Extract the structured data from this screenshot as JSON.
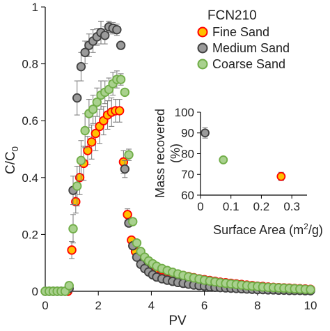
{
  "chart_data": [
    {
      "type": "scatter",
      "panel": "main",
      "xlabel": "PV",
      "ylabel": "C/C0",
      "ylabel_main": "C/C",
      "ylabel_sub": "0",
      "xlim": [
        0,
        10
      ],
      "ylim": [
        0,
        1
      ],
      "xticks": [
        "0",
        "2",
        "4",
        "6",
        "8",
        "10"
      ],
      "yticks": [
        "0",
        "0.2",
        "0.4",
        "0.6",
        "0.8",
        "1"
      ],
      "grid": false,
      "legend": {
        "title": "FCN210",
        "position": "top-right",
        "entries": [
          "Fine Sand",
          "Medium Sand",
          "Coarse Sand"
        ]
      },
      "series": [
        {
          "name": "Fine Sand",
          "color": "#ffc000",
          "edge": "#ff0000",
          "points": [
            [
              0.85,
              0.0,
              0
            ],
            [
              1.0,
              0.145,
              0.03
            ],
            [
              1.15,
              0.315,
              0.04
            ],
            [
              1.3,
              0.4,
              0.06
            ],
            [
              1.45,
              0.45,
              0.06
            ],
            [
              1.6,
              0.495,
              0.05
            ],
            [
              1.75,
              0.525,
              0.06
            ],
            [
              1.9,
              0.555,
              0.06
            ],
            [
              2.05,
              0.58,
              0.06
            ],
            [
              2.2,
              0.6,
              0.05
            ],
            [
              2.35,
              0.62,
              0.05
            ],
            [
              2.5,
              0.63,
              0.05
            ],
            [
              2.65,
              0.635,
              0.04
            ],
            [
              2.8,
              0.635,
              0.04
            ],
            [
              2.95,
              0.455,
              0.04
            ],
            [
              3.1,
              0.27,
              0.02
            ],
            [
              3.25,
              0.18,
              0.01
            ],
            [
              3.4,
              0.14,
              0
            ],
            [
              3.55,
              0.12,
              0
            ],
            [
              3.7,
              0.105,
              0
            ],
            [
              3.85,
              0.095,
              0
            ],
            [
              4.0,
              0.088,
              0
            ],
            [
              4.2,
              0.081,
              0
            ],
            [
              4.4,
              0.075,
              0
            ],
            [
              4.6,
              0.07,
              0
            ],
            [
              4.8,
              0.065,
              0
            ],
            [
              5.0,
              0.06,
              0
            ],
            [
              5.2,
              0.056,
              0
            ],
            [
              5.4,
              0.052,
              0
            ],
            [
              5.6,
              0.048,
              0
            ],
            [
              5.8,
              0.044,
              0
            ],
            [
              6.0,
              0.041,
              0
            ],
            [
              6.2,
              0.038,
              0
            ],
            [
              6.4,
              0.035,
              0
            ],
            [
              6.6,
              0.032,
              0
            ],
            [
              6.8,
              0.03,
              0
            ],
            [
              7.0,
              0.028,
              0
            ],
            [
              7.2,
              0.026,
              0
            ],
            [
              7.4,
              0.024,
              0
            ],
            [
              7.6,
              0.022,
              0
            ],
            [
              7.8,
              0.02,
              0
            ],
            [
              8.0,
              0.018,
              0
            ],
            [
              8.2,
              0.017,
              0
            ],
            [
              8.4,
              0.015,
              0
            ],
            [
              8.6,
              0.014,
              0
            ],
            [
              8.8,
              0.013,
              0
            ],
            [
              9.0,
              0.012,
              0
            ],
            [
              9.2,
              0.011,
              0
            ],
            [
              9.4,
              0.01,
              0
            ],
            [
              9.6,
              0.009,
              0
            ],
            [
              9.8,
              0.008,
              0
            ],
            [
              10.0,
              0.007,
              0
            ]
          ]
        },
        {
          "name": "Medium Sand",
          "color": "#9a9a9a",
          "edge": "#404040",
          "points": [
            [
              0.0,
              0.0,
              0
            ],
            [
              0.15,
              0.0,
              0
            ],
            [
              0.3,
              0.0,
              0
            ],
            [
              0.45,
              0.0,
              0
            ],
            [
              0.6,
              0.0,
              0
            ],
            [
              0.75,
              0.0,
              0
            ],
            [
              0.9,
              0.01,
              0
            ],
            [
              1.05,
              0.355,
              0.05
            ],
            [
              1.2,
              0.68,
              0.06
            ],
            [
              1.35,
              0.79,
              0.05
            ],
            [
              1.5,
              0.84,
              0.04
            ],
            [
              1.65,
              0.865,
              0.04
            ],
            [
              1.8,
              0.88,
              0.04
            ],
            [
              1.95,
              0.895,
              0.03
            ],
            [
              2.1,
              0.91,
              0.04
            ],
            [
              2.25,
              0.9,
              0.03
            ],
            [
              2.4,
              0.93,
              0.02
            ],
            [
              2.55,
              0.925,
              0.02
            ],
            [
              2.7,
              0.92,
              0.02
            ],
            [
              2.85,
              0.865,
              0
            ],
            [
              3.0,
              0.43,
              0.03
            ],
            [
              3.15,
              0.24,
              0.01
            ],
            [
              3.3,
              0.16,
              0
            ],
            [
              3.45,
              0.12,
              0
            ],
            [
              3.6,
              0.095,
              0
            ],
            [
              3.75,
              0.08,
              0
            ],
            [
              3.9,
              0.068,
              0
            ],
            [
              4.05,
              0.058,
              0
            ],
            [
              4.2,
              0.05,
              0
            ],
            [
              4.4,
              0.044,
              0
            ],
            [
              4.6,
              0.039,
              0
            ],
            [
              4.8,
              0.035,
              0
            ],
            [
              5.0,
              0.031,
              0
            ],
            [
              5.2,
              0.028,
              0
            ],
            [
              5.4,
              0.025,
              0
            ],
            [
              5.6,
              0.022,
              0
            ],
            [
              5.8,
              0.02,
              0
            ],
            [
              6.0,
              0.018,
              0
            ],
            [
              6.2,
              0.016,
              0
            ],
            [
              6.4,
              0.014,
              0
            ],
            [
              6.6,
              0.013,
              0
            ],
            [
              6.8,
              0.012,
              0
            ],
            [
              7.0,
              0.011,
              0
            ],
            [
              7.2,
              0.01,
              0
            ],
            [
              7.4,
              0.009,
              0
            ],
            [
              7.6,
              0.008,
              0
            ],
            [
              7.8,
              0.007,
              0
            ],
            [
              8.0,
              0.006,
              0
            ],
            [
              8.2,
              0.006,
              0
            ],
            [
              8.4,
              0.005,
              0
            ],
            [
              8.6,
              0.005,
              0
            ],
            [
              8.8,
              0.004,
              0
            ],
            [
              9.0,
              0.004,
              0
            ],
            [
              9.2,
              0.003,
              0
            ],
            [
              9.4,
              0.003,
              0
            ],
            [
              9.6,
              0.003,
              0
            ],
            [
              9.8,
              0.002,
              0
            ],
            [
              10.0,
              0.002,
              0
            ]
          ]
        },
        {
          "name": "Coarse Sand",
          "color": "#a9d18e",
          "edge": "#70ad47",
          "points": [
            [
              0.0,
              0.0,
              0
            ],
            [
              0.15,
              0.0,
              0
            ],
            [
              0.3,
              0.0,
              0
            ],
            [
              0.45,
              0.0,
              0
            ],
            [
              0.6,
              0.0,
              0
            ],
            [
              0.75,
              0.0,
              0
            ],
            [
              0.9,
              0.02,
              0.01
            ],
            [
              1.05,
              0.22,
              0.05
            ],
            [
              1.2,
              0.37,
              0.07
            ],
            [
              1.35,
              0.46,
              0.07
            ],
            [
              1.5,
              0.565,
              0.06
            ],
            [
              1.65,
              0.625,
              0.05
            ],
            [
              1.8,
              0.64,
              0.05
            ],
            [
              1.95,
              0.665,
              0.05
            ],
            [
              2.1,
              0.69,
              0.05
            ],
            [
              2.25,
              0.7,
              0.04
            ],
            [
              2.4,
              0.71,
              0.04
            ],
            [
              2.55,
              0.73,
              0.04
            ],
            [
              2.7,
              0.745,
              0.03
            ],
            [
              2.85,
              0.745,
              0.02
            ],
            [
              3.0,
              0.7,
              0.01
            ],
            [
              3.15,
              0.48,
              0.02
            ],
            [
              3.3,
              0.245,
              0.01
            ],
            [
              3.45,
              0.17,
              0
            ],
            [
              3.6,
              0.14,
              0
            ],
            [
              3.75,
              0.12,
              0
            ],
            [
              3.9,
              0.107,
              0
            ],
            [
              4.05,
              0.097,
              0
            ],
            [
              4.2,
              0.088,
              0
            ],
            [
              4.4,
              0.08,
              0
            ],
            [
              4.6,
              0.073,
              0
            ],
            [
              4.8,
              0.067,
              0
            ],
            [
              5.0,
              0.061,
              0
            ],
            [
              5.2,
              0.056,
              0
            ],
            [
              5.4,
              0.051,
              0
            ],
            [
              5.6,
              0.047,
              0
            ],
            [
              5.8,
              0.043,
              0
            ],
            [
              6.0,
              0.039,
              0
            ],
            [
              6.2,
              0.036,
              0
            ],
            [
              6.4,
              0.033,
              0
            ],
            [
              6.6,
              0.03,
              0
            ],
            [
              6.8,
              0.028,
              0
            ],
            [
              7.0,
              0.026,
              0
            ],
            [
              7.2,
              0.024,
              0
            ],
            [
              7.4,
              0.022,
              0
            ],
            [
              7.6,
              0.02,
              0
            ],
            [
              7.8,
              0.018,
              0
            ],
            [
              8.0,
              0.017,
              0
            ],
            [
              8.2,
              0.015,
              0
            ],
            [
              8.4,
              0.014,
              0
            ],
            [
              8.6,
              0.013,
              0
            ],
            [
              8.8,
              0.012,
              0
            ],
            [
              9.0,
              0.011,
              0
            ],
            [
              9.2,
              0.01,
              0
            ],
            [
              9.4,
              0.009,
              0
            ],
            [
              9.6,
              0.008,
              0
            ],
            [
              9.8,
              0.007,
              0
            ],
            [
              10.0,
              0.006,
              0
            ]
          ]
        }
      ]
    },
    {
      "type": "scatter",
      "panel": "inset",
      "xlabel": "Surface Area (m2/g)",
      "xlabel_main": "Surface Area (m",
      "xlabel_sup": "2",
      "xlabel_tail": "/g)",
      "ylabel_line1": "Mass recovered",
      "ylabel_line2": "(%)",
      "xlim": [
        0,
        0.35
      ],
      "ylim": [
        60,
        100
      ],
      "xticks": [
        "0",
        "0.1",
        "0.2",
        "0.3"
      ],
      "yticks": [
        "60",
        "70",
        "80",
        "90",
        "100"
      ],
      "series": [
        {
          "name": "Medium Sand",
          "color": "#9a9a9a",
          "edge": "#404040",
          "points": [
            [
              0.015,
              90.0,
              2.5
            ]
          ]
        },
        {
          "name": "Coarse Sand",
          "color": "#a9d18e",
          "edge": "#70ad47",
          "points": [
            [
              0.075,
              77.0,
              0
            ]
          ]
        },
        {
          "name": "Fine Sand",
          "color": "#ffc000",
          "edge": "#ff0000",
          "points": [
            [
              0.265,
              69.0,
              2.0
            ]
          ]
        }
      ]
    }
  ]
}
